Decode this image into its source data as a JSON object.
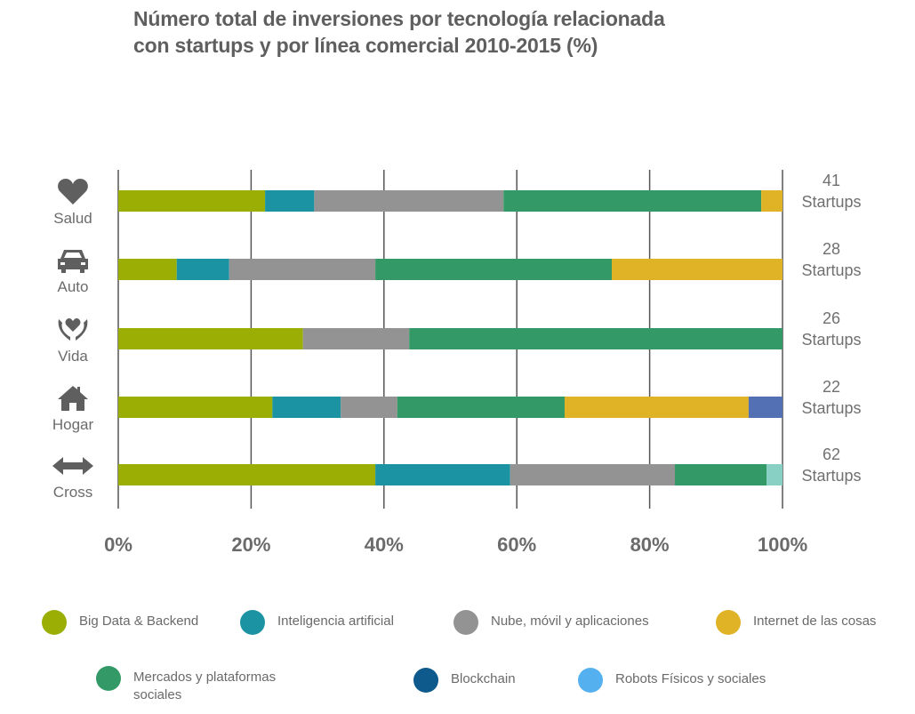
{
  "chart_data": {
    "type": "bar",
    "orientation": "horizontal",
    "stacked": true,
    "title": "Número total de inversiones por tecnología relacionada con startups y por línea comercial 2010-2015 (%)",
    "title_lines": [
      "Número total de inversiones por tecnología relacionada",
      "con startups y por línea comercial 2010-2015 (%)"
    ],
    "xlabel": "",
    "ylabel": "",
    "xlim": [
      0,
      100
    ],
    "x_ticks": [
      "0%",
      "20%",
      "40%",
      "60%",
      "80%",
      "100%"
    ],
    "x_tick_values": [
      0,
      20,
      40,
      60,
      80,
      100
    ],
    "grid": true,
    "legend_position": "bottom",
    "categories": [
      "Salud",
      "Auto",
      "Vida",
      "Hogar",
      "Cross"
    ],
    "category_icons": [
      "heart-icon",
      "car-icon",
      "hands-heart-icon",
      "house-icon",
      "double-arrow-icon"
    ],
    "startup_counts": [
      {
        "number": "41",
        "label": "Startups"
      },
      {
        "number": "28",
        "label": "Startups"
      },
      {
        "number": "26",
        "label": "Startups"
      },
      {
        "number": "22",
        "label": "Startups"
      },
      {
        "number": "62",
        "label": "Startups"
      }
    ],
    "series": [
      {
        "name": "Big Data & Backend",
        "color": "#9aae04",
        "values": [
          22.1,
          8.8,
          27.8,
          23.2,
          38.7
        ]
      },
      {
        "name": "Inteligencia artificial",
        "color": "#1b93a2",
        "values": [
          7.4,
          7.9,
          0,
          10.3,
          20.3
        ]
      },
      {
        "name": "Nube, móvil y aplicaciones",
        "color": "#939393",
        "values": [
          28.5,
          22.0,
          16.0,
          8.5,
          24.8
        ]
      },
      {
        "name": "Internet de las cosas",
        "color": "#e0b225",
        "values": [
          3.2,
          25.7,
          0,
          27.7,
          0
        ]
      },
      {
        "name": "Mercados y plataformas sociales",
        "color": "#339966",
        "values": [
          38.8,
          35.6,
          56.2,
          25.2,
          13.8
        ]
      },
      {
        "name": "Blockchain",
        "color": "#0f5a8c",
        "bar_color": "#5470b5",
        "values": [
          0,
          0,
          0,
          5.1,
          0
        ]
      },
      {
        "name": "Robots Físicos y sociales",
        "color": "#55b0f0",
        "bar_color": "#88cfc4",
        "values": [
          0,
          0,
          0,
          0,
          2.4
        ]
      }
    ],
    "stack_order": [
      0,
      1,
      2,
      4,
      3,
      5,
      6
    ]
  }
}
